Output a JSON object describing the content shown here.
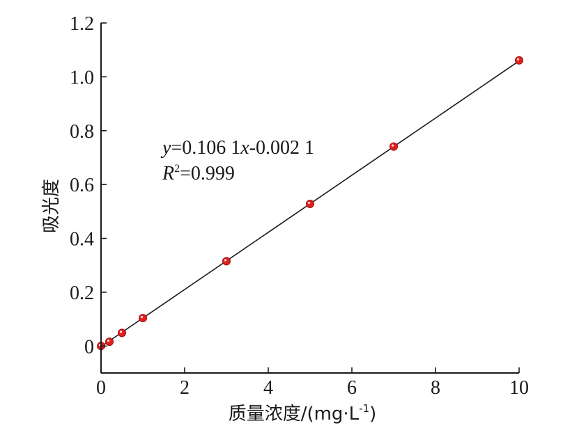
{
  "chart_data": {
    "type": "scatter",
    "xlabel": "质量浓度/(mg·L",
    "xlabel_sup": "-1",
    "xlabel_close": ")",
    "ylabel": "吸光度",
    "xlim": [
      0,
      10
    ],
    "ylim": [
      -0.1,
      1.2
    ],
    "x_ticks": [
      0,
      2,
      4,
      6,
      8,
      10
    ],
    "y_ticks": [
      0,
      0.2,
      0.4,
      0.6,
      0.8,
      1.0,
      1.2
    ],
    "x_tick_labels": [
      "0",
      "2",
      "4",
      "6",
      "8",
      "10"
    ],
    "y_tick_labels": [
      "0",
      "0.2",
      "0.4",
      "0.6",
      "0.8",
      "1.0",
      "1.2"
    ],
    "grid": false,
    "series": [
      {
        "color": "#e02020",
        "points": [
          {
            "x": 0,
            "y": 0.0
          },
          {
            "x": 0.2,
            "y": 0.016
          },
          {
            "x": 0.5,
            "y": 0.049
          },
          {
            "x": 1,
            "y": 0.104
          },
          {
            "x": 3,
            "y": 0.315
          },
          {
            "x": 5,
            "y": 0.528
          },
          {
            "x": 7,
            "y": 0.741
          },
          {
            "x": 10,
            "y": 1.061
          }
        ]
      }
    ],
    "fit": {
      "slope": 0.1061,
      "intercept": -0.0021,
      "x_range": [
        0,
        10
      ],
      "color": "#1a1a1a"
    },
    "annotation": {
      "eq_y": "y",
      "eq_mid": "=0.106 1",
      "eq_x": "x",
      "eq_tail": "-0.002 1",
      "r_label": "R",
      "r_sup": "2",
      "r_value": "=0.999"
    }
  }
}
